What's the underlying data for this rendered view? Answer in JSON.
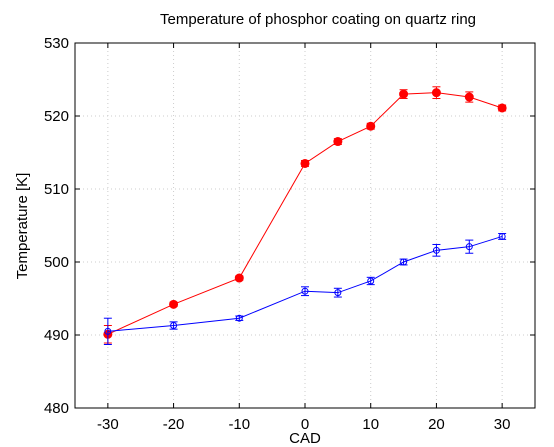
{
  "chart_data": {
    "type": "line",
    "title": "Temperature of phosphor coating on quartz ring",
    "xlabel": "CAD",
    "ylabel": "Temperature [K]",
    "xlim": [
      -35,
      35
    ],
    "ylim": [
      480,
      530
    ],
    "xticks": [
      -30,
      -20,
      -10,
      0,
      10,
      20,
      30
    ],
    "yticks": [
      480,
      490,
      500,
      510,
      520,
      530
    ],
    "grid": true,
    "series": [
      {
        "color": "#ff0000",
        "marker": "filled-circle",
        "points": [
          {
            "x": -30,
            "y": 490.1,
            "err": 1.2
          },
          {
            "x": -20,
            "y": 494.2,
            "err": 0.3
          },
          {
            "x": -10,
            "y": 497.8,
            "err": 0.3
          },
          {
            "x": 0,
            "y": 513.5,
            "err": 0.4
          },
          {
            "x": 5,
            "y": 516.5,
            "err": 0.4
          },
          {
            "x": 10,
            "y": 518.6,
            "err": 0.4
          },
          {
            "x": 15,
            "y": 523.0,
            "err": 0.6
          },
          {
            "x": 20,
            "y": 523.2,
            "err": 0.8
          },
          {
            "x": 25,
            "y": 522.6,
            "err": 0.7
          },
          {
            "x": 30,
            "y": 521.1,
            "err": 0.4
          }
        ]
      },
      {
        "color": "#0000ff",
        "marker": "open-circle",
        "points": [
          {
            "x": -30,
            "y": 490.5,
            "err": 1.8
          },
          {
            "x": -20,
            "y": 491.3,
            "err": 0.5
          },
          {
            "x": -10,
            "y": 492.3,
            "err": 0.3
          },
          {
            "x": 0,
            "y": 496.0,
            "err": 0.6
          },
          {
            "x": 5,
            "y": 495.8,
            "err": 0.6
          },
          {
            "x": 10,
            "y": 497.4,
            "err": 0.5
          },
          {
            "x": 15,
            "y": 500.0,
            "err": 0.4
          },
          {
            "x": 20,
            "y": 501.6,
            "err": 0.8
          },
          {
            "x": 25,
            "y": 502.1,
            "err": 0.9
          },
          {
            "x": 30,
            "y": 503.5,
            "err": 0.4
          }
        ]
      }
    ]
  }
}
